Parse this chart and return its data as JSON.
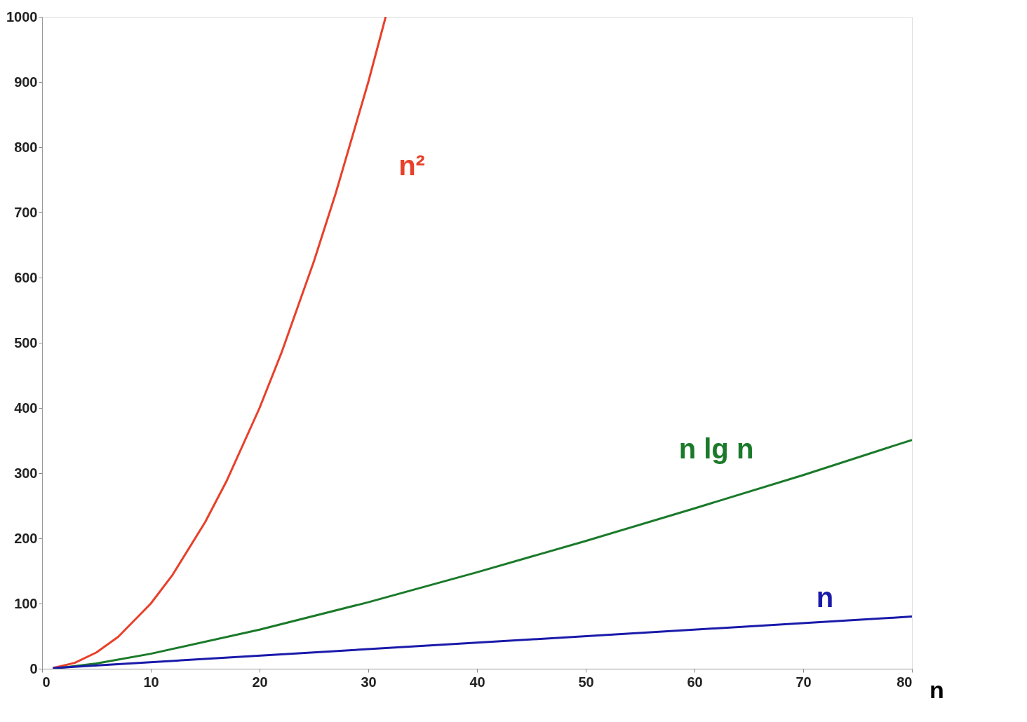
{
  "chart_data": {
    "type": "line",
    "xlabel": "n",
    "xlim": [
      0,
      80
    ],
    "ylim": [
      0,
      1000
    ],
    "xticks": [
      0,
      10,
      20,
      30,
      40,
      50,
      60,
      70,
      80
    ],
    "yticks": [
      0,
      100,
      200,
      300,
      400,
      500,
      600,
      700,
      800,
      900,
      1000
    ],
    "grid": false,
    "marker": "none",
    "line_style": "solid",
    "series": [
      {
        "name": "n²",
        "color": "#e8402a",
        "x": [
          1,
          3,
          5,
          7,
          10,
          12,
          15,
          17,
          20,
          22,
          25,
          27,
          30,
          31.6
        ],
        "values": [
          1,
          9,
          25,
          49,
          100,
          144,
          225,
          289,
          400,
          484,
          625,
          729,
          900,
          1000
        ]
      },
      {
        "name": "n lg n",
        "color": "#1a7a2a",
        "x": [
          1,
          5,
          10,
          20,
          30,
          40,
          50,
          60,
          70,
          80
        ],
        "values": [
          0,
          8,
          23,
          60,
          102,
          148,
          196,
          246,
          297,
          351
        ]
      },
      {
        "name": "n",
        "color": "#1a1aaa",
        "x": [
          1,
          80
        ],
        "values": [
          1,
          80
        ]
      }
    ]
  }
}
